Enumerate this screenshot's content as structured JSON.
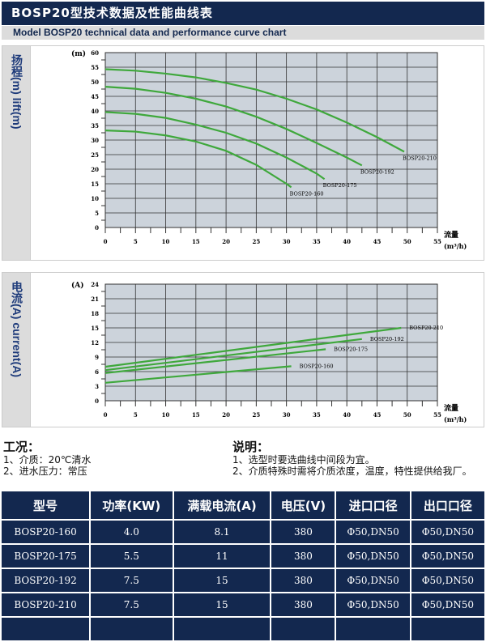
{
  "header": {
    "title": "BOSP20型技术数据及性能曲线表",
    "subtitle": "Model BOSP20 technical data and performance curve chart"
  },
  "chart_data": [
    {
      "type": "line",
      "ylabel": "扬程(m) lift(m)",
      "yunit": "(m)",
      "xlabel": "流量",
      "xunit": "(m³/h)",
      "xlim": [
        0,
        55
      ],
      "ylim": [
        0,
        60
      ],
      "xticks": [
        0,
        5,
        10,
        15,
        20,
        25,
        30,
        35,
        40,
        45,
        50,
        55
      ],
      "yticks": [
        0,
        5,
        10,
        15,
        20,
        25,
        30,
        35,
        40,
        45,
        50,
        55,
        60
      ],
      "grid": true,
      "line_color": "#3fa83c",
      "plot_bg": "#ccd3db",
      "series": [
        {
          "name": "BOSP20-210",
          "x": [
            0,
            5,
            10,
            15,
            20,
            25,
            30,
            35,
            40,
            45,
            49.5
          ],
          "y": [
            54.3,
            53.8,
            52.8,
            51.5,
            49.6,
            47.3,
            44.2,
            40.5,
            36,
            31,
            26
          ]
        },
        {
          "name": "BOSP20-192",
          "x": [
            0,
            5,
            10,
            15,
            20,
            25,
            30,
            35,
            40,
            42.5
          ],
          "y": [
            48.3,
            47.6,
            46.2,
            44.2,
            41.5,
            38,
            33.8,
            29,
            24,
            21.3
          ]
        },
        {
          "name": "BOSP20-175",
          "x": [
            0,
            5,
            10,
            15,
            20,
            25,
            30,
            35,
            36.3
          ],
          "y": [
            39.6,
            39,
            37.6,
            35.3,
            32.5,
            28.8,
            24,
            18.5,
            16.6
          ]
        },
        {
          "name": "BOSP20-160",
          "x": [
            0,
            5,
            10,
            15,
            20,
            25,
            30,
            30.8
          ],
          "y": [
            33.3,
            32.9,
            31.6,
            29.5,
            26.3,
            21.5,
            15,
            13.8
          ]
        }
      ]
    },
    {
      "type": "line",
      "ylabel": "电流(A) current(A)",
      "yunit": "(A)",
      "xlabel": "流量",
      "xunit": "(m³/h)",
      "xlim": [
        0,
        55
      ],
      "ylim": [
        0,
        24
      ],
      "xticks": [
        0,
        5,
        10,
        15,
        20,
        25,
        30,
        35,
        40,
        45,
        50,
        55
      ],
      "yticks": [
        0,
        3,
        6,
        9,
        12,
        15,
        18,
        21,
        24
      ],
      "grid": true,
      "line_color": "#3fa83c",
      "plot_bg": "#ccd3db",
      "series": [
        {
          "name": "BOSP20-210",
          "x": [
            0,
            49
          ],
          "y": [
            7,
            15
          ]
        },
        {
          "name": "BOSP20-192",
          "x": [
            0,
            42.5
          ],
          "y": [
            6.3,
            12.7
          ]
        },
        {
          "name": "BOSP20-175",
          "x": [
            0,
            36.5
          ],
          "y": [
            5.7,
            10.6
          ]
        },
        {
          "name": "BOSP20-160",
          "x": [
            0,
            30.8
          ],
          "y": [
            3.7,
            7.1
          ]
        }
      ]
    }
  ],
  "conditions": {
    "title": "工况：",
    "items": [
      "1、介质：20℃清水",
      "2、进水压力：常压"
    ]
  },
  "notes": {
    "title": "说明：",
    "items": [
      "1、选型时要选曲线中间段为宜。",
      "2、介质特殊时需将介质浓度，温度，特性提供给我厂。"
    ]
  },
  "table": {
    "headers": [
      "型号",
      "功率(KW)",
      "满载电流(A)",
      "电压(V)",
      "进口口径",
      "出口口径"
    ],
    "rows": [
      [
        "BOSP20-160",
        "4.0",
        "8.1",
        "380",
        "Φ50,DN50",
        "Φ50,DN50"
      ],
      [
        "BOSP20-175",
        "5.5",
        "11",
        "380",
        "Φ50,DN50",
        "Φ50,DN50"
      ],
      [
        "BOSP20-192",
        "7.5",
        "15",
        "380",
        "Φ50,DN50",
        "Φ50,DN50"
      ],
      [
        "BOSP20-210",
        "7.5",
        "15",
        "380",
        "Φ50,DN50",
        "Φ50,DN50"
      ],
      [
        "",
        "",
        "",
        "",
        "",
        ""
      ]
    ]
  }
}
